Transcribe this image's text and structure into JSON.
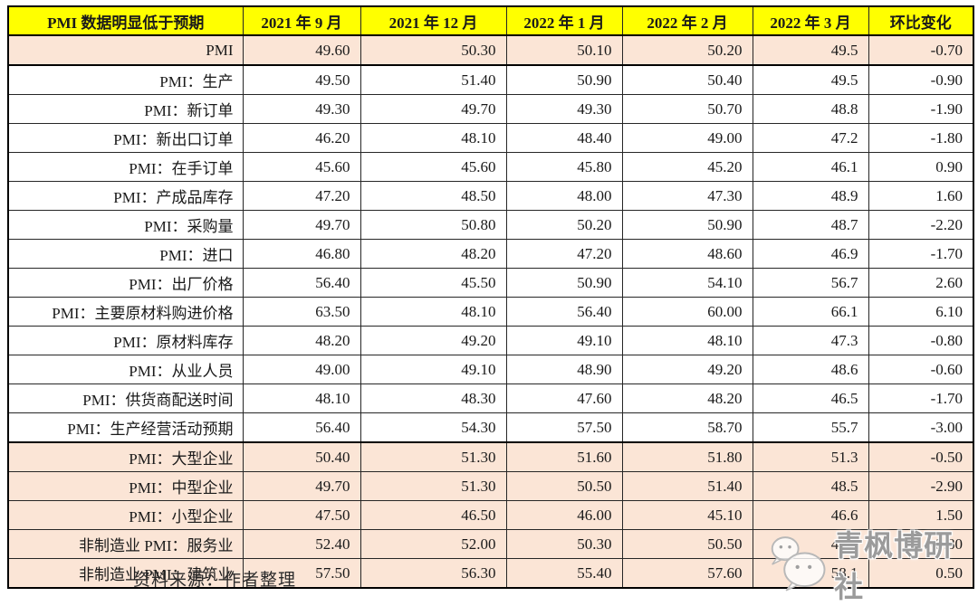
{
  "page": {
    "source_note": "资料来源：作者整理"
  },
  "watermark": {
    "text": "青枫博研社",
    "icon": "wechat-icon"
  },
  "colors": {
    "header_bg": "#ffff00",
    "highlight_row_bg": "#fbe5d6",
    "negative_text": "#ff0000",
    "body_text": "#1a1a1a"
  },
  "chart_data": {
    "type": "table",
    "title": "PMI 数据明显低于预期",
    "columns": [
      "2021 年 9 月",
      "2021 年 12 月",
      "2022 年 1 月",
      "2022 年 2 月",
      "2022 年 3 月",
      "环比变化"
    ],
    "rows": [
      {
        "label": "PMI",
        "values": [
          "49.60",
          "50.30",
          "50.10",
          "50.20",
          "49.5",
          "-0.70"
        ],
        "highlight": true
      },
      {
        "label": "PMI：生产",
        "values": [
          "49.50",
          "51.40",
          "50.90",
          "50.40",
          "49.5",
          "-0.90"
        ],
        "highlight": false
      },
      {
        "label": "PMI：新订单",
        "values": [
          "49.30",
          "49.70",
          "49.30",
          "50.70",
          "48.8",
          "-1.90"
        ],
        "highlight": false
      },
      {
        "label": "PMI：新出口订单",
        "values": [
          "46.20",
          "48.10",
          "48.40",
          "49.00",
          "47.2",
          "-1.80"
        ],
        "highlight": false
      },
      {
        "label": "PMI：在手订单",
        "values": [
          "45.60",
          "45.60",
          "45.80",
          "45.20",
          "46.1",
          "0.90"
        ],
        "highlight": false
      },
      {
        "label": "PMI：产成品库存",
        "values": [
          "47.20",
          "48.50",
          "48.00",
          "47.30",
          "48.9",
          "1.60"
        ],
        "highlight": false
      },
      {
        "label": "PMI：采购量",
        "values": [
          "49.70",
          "50.80",
          "50.20",
          "50.90",
          "48.7",
          "-2.20"
        ],
        "highlight": false
      },
      {
        "label": "PMI：进口",
        "values": [
          "46.80",
          "48.20",
          "47.20",
          "48.60",
          "46.9",
          "-1.70"
        ],
        "highlight": false
      },
      {
        "label": "PMI：出厂价格",
        "values": [
          "56.40",
          "45.50",
          "50.90",
          "54.10",
          "56.7",
          "2.60"
        ],
        "highlight": false
      },
      {
        "label": "PMI：主要原材料购进价格",
        "values": [
          "63.50",
          "48.10",
          "56.40",
          "60.00",
          "66.1",
          "6.10"
        ],
        "highlight": false
      },
      {
        "label": "PMI：原材料库存",
        "values": [
          "48.20",
          "49.20",
          "49.10",
          "48.10",
          "47.3",
          "-0.80"
        ],
        "highlight": false
      },
      {
        "label": "PMI：从业人员",
        "values": [
          "49.00",
          "49.10",
          "48.90",
          "49.20",
          "48.6",
          "-0.60"
        ],
        "highlight": false
      },
      {
        "label": "PMI：供货商配送时间",
        "values": [
          "48.10",
          "48.30",
          "47.60",
          "48.20",
          "46.5",
          "-1.70"
        ],
        "highlight": false
      },
      {
        "label": "PMI：生产经营活动预期",
        "values": [
          "56.40",
          "54.30",
          "57.50",
          "58.70",
          "55.7",
          "-3.00"
        ],
        "highlight": false
      },
      {
        "label": "PMI：大型企业",
        "values": [
          "50.40",
          "51.30",
          "51.60",
          "51.80",
          "51.3",
          "-0.50"
        ],
        "highlight": true
      },
      {
        "label": "PMI：中型企业",
        "values": [
          "49.70",
          "51.30",
          "50.50",
          "51.40",
          "48.5",
          "-2.90"
        ],
        "highlight": true
      },
      {
        "label": "PMI：小型企业",
        "values": [
          "47.50",
          "46.50",
          "46.00",
          "45.10",
          "46.6",
          "1.50"
        ],
        "highlight": true
      },
      {
        "label": "非制造业 PMI：服务业",
        "values": [
          "52.40",
          "52.00",
          "50.30",
          "50.50",
          "46.7",
          "-3.80"
        ],
        "highlight": true
      },
      {
        "label": "非制造业 PMI：建筑业",
        "values": [
          "57.50",
          "56.30",
          "55.40",
          "57.60",
          "58.1",
          "0.50"
        ],
        "highlight": true
      }
    ]
  }
}
